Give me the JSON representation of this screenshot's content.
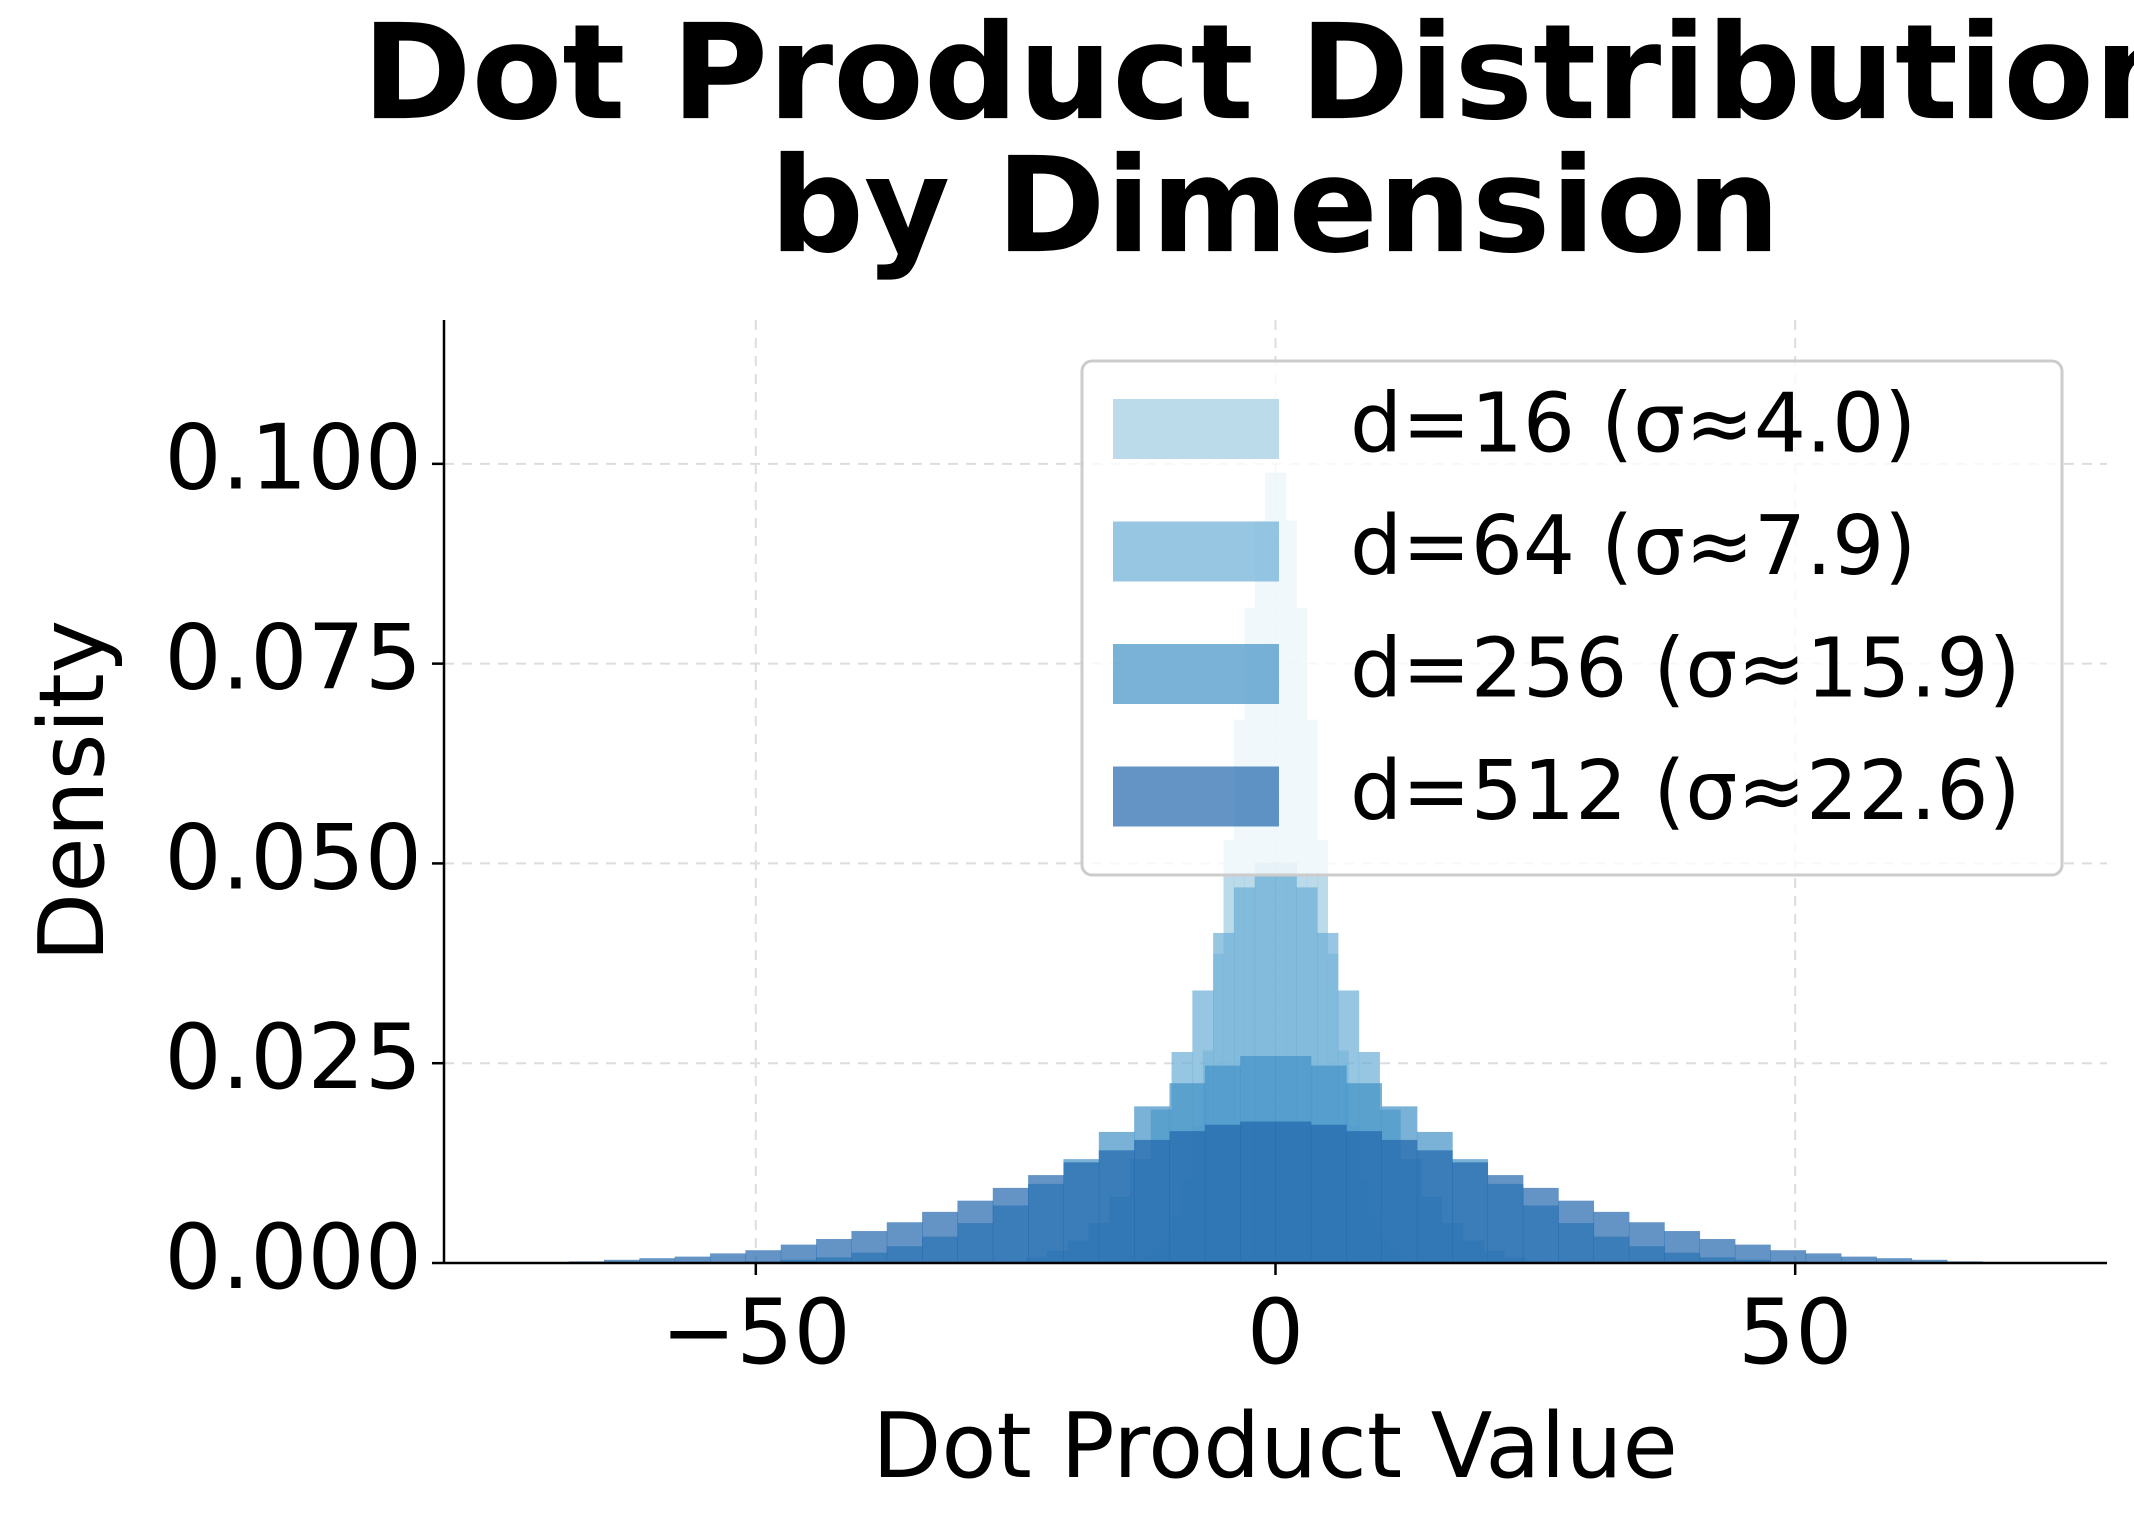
{
  "chart_data": {
    "type": "histogram",
    "title": [
      "Dot Product Distribution",
      "by Dimension"
    ],
    "xlabel": "Dot Product Value",
    "ylabel": "Density",
    "xlim": [
      -80,
      80
    ],
    "ylim": [
      0,
      0.118
    ],
    "xticks": [
      {
        "value": -50,
        "label": "−50"
      },
      0,
      50
    ],
    "yticks": [
      {
        "value": 0,
        "label": "0.000"
      },
      {
        "value": 0.025,
        "label": "0.025"
      },
      {
        "value": 0.05,
        "label": "0.050"
      },
      {
        "value": 0.075,
        "label": "0.075"
      },
      {
        "value": 0.1,
        "label": "0.100"
      }
    ],
    "grid": true,
    "legend": "upper right",
    "alpha": 0.7,
    "series": [
      {
        "name": "d=16 (σ≈4.0)",
        "color": "#9ecae1",
        "bins": [
          -16,
          -15,
          -14,
          -13,
          -12,
          -11,
          -10,
          -9,
          -8,
          -7,
          -6,
          -5,
          -4,
          -3,
          -2,
          -1,
          0,
          1,
          2,
          3,
          4,
          5,
          6,
          7,
          8,
          9,
          10,
          11,
          12,
          13,
          14,
          15,
          16
        ],
        "values": [
          0.0001,
          0.0001,
          0.0003,
          0.0008,
          0.0016,
          0.0032,
          0.0059,
          0.0104,
          0.0172,
          0.0266,
          0.0387,
          0.0529,
          0.068,
          0.082,
          0.0929,
          0.0989,
          0.0989,
          0.0929,
          0.082,
          0.068,
          0.0529,
          0.0387,
          0.0266,
          0.0172,
          0.0104,
          0.0059,
          0.0032,
          0.0016,
          0.0008,
          0.0003,
          0.0001,
          0.0001
        ]
      },
      {
        "name": "d=64 (σ≈7.9)",
        "color": "#6baed6",
        "bins": [
          -30,
          -28,
          -26,
          -24,
          -22,
          -20,
          -18,
          -16,
          -14,
          -12,
          -10,
          -8,
          -6,
          -4,
          -2,
          0,
          2,
          4,
          6,
          8,
          10,
          12,
          14,
          16,
          18,
          20,
          22,
          24,
          26,
          28,
          30
        ],
        "values": [
          0.0001,
          0.0001,
          0.0003,
          0.0007,
          0.0015,
          0.0028,
          0.005,
          0.0083,
          0.013,
          0.0192,
          0.0264,
          0.0341,
          0.0413,
          0.047,
          0.0501,
          0.0501,
          0.047,
          0.0413,
          0.0341,
          0.0264,
          0.0192,
          0.013,
          0.0083,
          0.005,
          0.0028,
          0.0015,
          0.0007,
          0.0003,
          0.0001,
          0.0001
        ]
      },
      {
        "name": "d=256 (σ≈15.9)",
        "color": "#4292c6",
        "bins": [
          -54.4,
          -51,
          -47.6,
          -44.2,
          -40.8,
          -37.4,
          -34,
          -30.6,
          -27.2,
          -23.8,
          -20.4,
          -17,
          -13.6,
          -10.2,
          -6.8,
          -3.4,
          0,
          3.4,
          6.8,
          10.2,
          13.6,
          17,
          20.4,
          23.8,
          27.2,
          30.6,
          34,
          37.4,
          40.8,
          44.2,
          47.6,
          51,
          54.4
        ],
        "values": [
          0.0001,
          0.0002,
          0.0004,
          0.0007,
          0.0013,
          0.0021,
          0.0033,
          0.005,
          0.0072,
          0.0099,
          0.013,
          0.0164,
          0.0196,
          0.0225,
          0.0247,
          0.0259,
          0.0259,
          0.0247,
          0.0225,
          0.0196,
          0.0164,
          0.013,
          0.0099,
          0.0072,
          0.005,
          0.0033,
          0.0021,
          0.0013,
          0.0007,
          0.0004,
          0.0002,
          0.0001
        ]
      },
      {
        "name": "d=512 (σ≈22.6)",
        "color": "#2166ac",
        "bins": [
          -68,
          -64.6,
          -61.2,
          -57.8,
          -54.4,
          -51,
          -47.6,
          -44.2,
          -40.8,
          -37.4,
          -34,
          -30.6,
          -27.2,
          -23.8,
          -20.4,
          -17,
          -13.6,
          -10.2,
          -6.8,
          -3.4,
          0,
          3.4,
          6.8,
          10.2,
          13.6,
          17,
          20.4,
          23.8,
          27.2,
          30.6,
          34,
          37.4,
          40.8,
          44.2,
          47.6,
          51,
          54.4,
          57.8,
          61.2,
          64.6,
          68
        ],
        "values": [
          0.0002,
          0.0004,
          0.0006,
          0.0008,
          0.0012,
          0.0016,
          0.0023,
          0.003,
          0.004,
          0.0051,
          0.0064,
          0.0078,
          0.0094,
          0.011,
          0.0126,
          0.0141,
          0.0154,
          0.0165,
          0.0173,
          0.0177,
          0.0177,
          0.0173,
          0.0165,
          0.0154,
          0.0141,
          0.0126,
          0.011,
          0.0094,
          0.0078,
          0.0064,
          0.0051,
          0.004,
          0.003,
          0.0023,
          0.0016,
          0.0012,
          0.0008,
          0.0006,
          0.0004,
          0.0002
        ]
      }
    ]
  }
}
